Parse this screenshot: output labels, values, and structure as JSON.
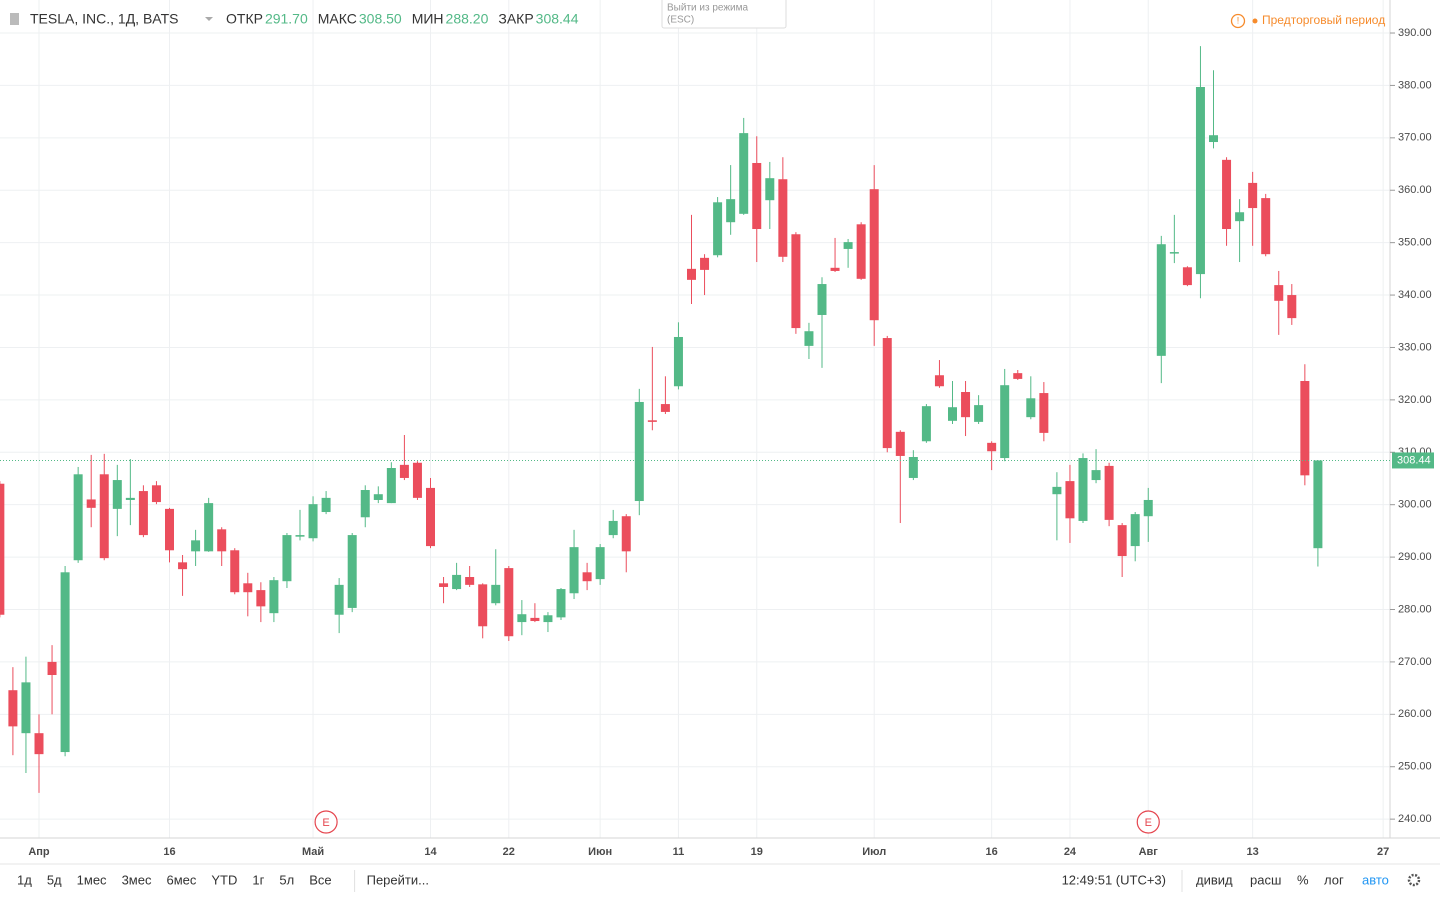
{
  "chart_data": {
    "type": "candlestick",
    "title": "TESLA, INC., 1Д, BATS",
    "ohlc_legend": [
      {
        "name": "ОТКР",
        "value": "291.70"
      },
      {
        "name": "МАКС",
        "value": "308.50"
      },
      {
        "name": "МИН",
        "value": "288.20"
      },
      {
        "name": "ЗАКР",
        "value": "308.44"
      }
    ],
    "tooltip": [
      "Выйти из режима",
      "(ESC)"
    ],
    "session_note": "Предторговый период",
    "up_color": "#53b987",
    "down_color": "#eb4d5c",
    "categories": [
      null,
      null,
      null,
      "Апр",
      null,
      null,
      null,
      null,
      null,
      null,
      null,
      null,
      null,
      "16",
      null,
      null,
      null,
      null,
      null,
      null,
      null,
      null,
      null,
      null,
      "Май",
      null,
      null,
      null,
      null,
      null,
      null,
      null,
      null,
      "14",
      null,
      null,
      null,
      null,
      null,
      "22",
      null,
      null,
      null,
      null,
      null,
      null,
      "Июн",
      null,
      null,
      null,
      null,
      null,
      "11",
      null,
      null,
      null,
      null,
      null,
      "19",
      null,
      null,
      null,
      null,
      null,
      null,
      null,
      null,
      "Июл",
      null,
      null,
      null,
      null,
      null,
      null,
      null,
      null,
      "16",
      null,
      null,
      null,
      null,
      null,
      "24",
      null,
      null,
      null,
      null,
      null,
      "Авг",
      null,
      null,
      null,
      null,
      null,
      null,
      null,
      "13",
      null,
      null,
      null,
      null,
      null,
      null,
      null,
      null,
      null,
      "27"
    ],
    "open": [
      304,
      264.6,
      256.4,
      256.4,
      270,
      252.8,
      289.4,
      301,
      305.8,
      299.2,
      300.9,
      302.6,
      303.7,
      299.2,
      289,
      291.1,
      291.1,
      295.3,
      291.3,
      285,
      283.7,
      279.3,
      285.4,
      293.9,
      293.6,
      298.6,
      279,
      280.3,
      297.6,
      300.9,
      300.3,
      307.6,
      308,
      303.2,
      285,
      283.9,
      286.2,
      284.8,
      281.2,
      287.9,
      277.6,
      278.4,
      277.6,
      278.5,
      283.1,
      287.1,
      285.8,
      294.2,
      297.8,
      300.7,
      316.1,
      319.2,
      322.6,
      345,
      347.1,
      347.6,
      353.9,
      355.5,
      365.2,
      358.1,
      362.1,
      351.6,
      330.3,
      336.2,
      345.2,
      348.8,
      353.5,
      360.2,
      331.8,
      313.9,
      305.1,
      312.1,
      324.7,
      316,
      321.5,
      315.8,
      311.8,
      308.9,
      325.1,
      316.7,
      321.3,
      302,
      304.5,
      296.9,
      304.7,
      307.4,
      296.1,
      292.1,
      297.8,
      328.4,
      348,
      345.3,
      344,
      369.2,
      365.8,
      354.1,
      361.4,
      358.5,
      341.9,
      340,
      323.6,
      291.7,
      null,
      null,
      null,
      null,
      null
    ],
    "high": [
      304.5,
      269,
      271,
      260,
      273.2,
      288.3,
      307.2,
      309.5,
      309.7,
      307.6,
      308.7,
      303.7,
      304.5,
      299.4,
      290.4,
      295.2,
      301.3,
      295.7,
      291.7,
      287,
      285.2,
      286.2,
      294.6,
      299,
      301.6,
      302.6,
      286,
      294.6,
      303.7,
      303.5,
      308.1,
      313.3,
      308.3,
      305.1,
      286.2,
      288.9,
      288.3,
      285,
      291.5,
      288.3,
      281.8,
      281.2,
      279.5,
      284.1,
      295.2,
      288.9,
      292.5,
      299,
      298.2,
      322.1,
      330.1,
      324.5,
      334.8,
      355.3,
      347.8,
      358.7,
      364.8,
      373.8,
      370.3,
      365.4,
      366.3,
      352,
      334.7,
      343.4,
      350.9,
      350.7,
      353.9,
      364.8,
      332.2,
      314.2,
      310.4,
      319.2,
      327.6,
      323.6,
      323.6,
      320.9,
      312.1,
      325.9,
      325.7,
      324.5,
      323.4,
      306.2,
      307.6,
      309.8,
      310.6,
      308,
      296.5,
      298.6,
      303.2,
      351.3,
      355.3,
      345.5,
      387.5,
      382.9,
      366.3,
      358.3,
      363.5,
      359.3,
      344.6,
      342.1,
      326.8,
      308.5,
      null,
      null,
      null,
      null,
      null
    ],
    "low": [
      278.5,
      252.2,
      248.8,
      245,
      260,
      252,
      288.9,
      295.7,
      289.4,
      294,
      296.1,
      293.8,
      300.1,
      289,
      282.6,
      288.3,
      291,
      288.3,
      282.9,
      278.7,
      277.6,
      277.6,
      284.1,
      293.2,
      293,
      298.2,
      275.5,
      279.5,
      295.7,
      300.3,
      300.3,
      304.7,
      300.9,
      291.7,
      281.2,
      283.7,
      284.3,
      274.5,
      280.8,
      274,
      275.1,
      277.6,
      275.7,
      278,
      282,
      283.7,
      284.7,
      293.6,
      287.1,
      298,
      314.2,
      317.3,
      322,
      338.3,
      340,
      347.2,
      351.5,
      355.3,
      346.3,
      352.6,
      346.3,
      332.6,
      327.8,
      326.1,
      344.4,
      345.2,
      342.9,
      330.3,
      310,
      296.5,
      304.7,
      311.8,
      322.3,
      315.4,
      313.1,
      315.4,
      306.6,
      308.3,
      323.8,
      316.3,
      312.1,
      293.2,
      292.7,
      296.5,
      304.1,
      295.9,
      286.2,
      289.2,
      292.9,
      323.2,
      346.1,
      341.7,
      339.4,
      368,
      349.4,
      346.3,
      349.4,
      347.4,
      332.4,
      334.3,
      303.7,
      288.2,
      null,
      null,
      null,
      null,
      null
    ],
    "close": [
      279,
      257.7,
      266.1,
      252.4,
      267.5,
      287.1,
      305.8,
      299.4,
      289.8,
      304.7,
      301.3,
      294.2,
      300.5,
      291.3,
      287.7,
      293.2,
      300.3,
      291.1,
      283.3,
      283.3,
      280.6,
      285.6,
      294.2,
      294.2,
      300.1,
      301.3,
      284.7,
      294.2,
      302.8,
      302,
      307,
      305.1,
      301.3,
      292.1,
      284.3,
      286.6,
      284.7,
      276.8,
      284.7,
      274.9,
      279.1,
      277.8,
      278.9,
      283.9,
      291.9,
      285.4,
      291.9,
      296.9,
      291.1,
      319.6,
      315.8,
      317.7,
      332,
      342.9,
      344.8,
      357.7,
      358.3,
      370.9,
      352.6,
      362.3,
      347.3,
      333.7,
      333.1,
      342.1,
      344.6,
      350.1,
      343.1,
      335.2,
      310.8,
      309.3,
      309.1,
      318.8,
      322.6,
      318.6,
      316.7,
      319,
      310.2,
      322.8,
      324,
      320.3,
      313.7,
      303.4,
      297.4,
      308.9,
      306.6,
      297.1,
      290.2,
      298.2,
      300.9,
      349.7,
      348.2,
      341.9,
      379.7,
      370.5,
      352.6,
      355.8,
      356.6,
      347.8,
      338.9,
      335.6,
      305.6,
      308.44,
      null,
      null,
      null,
      null,
      null
    ],
    "events": [
      {
        "at": 25,
        "label": "E"
      },
      {
        "at": 88,
        "label": "E"
      }
    ],
    "ylim": [
      236.4,
      396.3
    ],
    "yticks": [
      {
        "value": 240,
        "label": "240.00"
      },
      {
        "value": 250,
        "label": "250.00"
      },
      {
        "value": 260,
        "label": "260.00"
      },
      {
        "value": 270,
        "label": "270.00"
      },
      {
        "value": 280,
        "label": "280.00"
      },
      {
        "value": 290,
        "label": "290.00"
      },
      {
        "value": 300,
        "label": "300.00"
      },
      {
        "value": 310,
        "label": "310.00"
      },
      {
        "value": 320,
        "label": "320.00"
      },
      {
        "value": 330,
        "label": "330.00"
      },
      {
        "value": 340,
        "label": "340.00"
      },
      {
        "value": 350,
        "label": "350.00"
      },
      {
        "value": 360,
        "label": "360.00"
      },
      {
        "value": 370,
        "label": "370.00"
      },
      {
        "value": 380,
        "label": "380.00"
      },
      {
        "value": 390,
        "label": "390.00"
      }
    ],
    "grid": true,
    "toolbar_left": [
      "1д",
      "5д",
      "1мес",
      "3мес",
      "6мес",
      "YTD",
      "1г",
      "5л",
      "Все",
      "Перейти..."
    ],
    "clock": "12:49:51 (UTC+3)",
    "toolbar_right": [
      "дивид",
      "расш",
      "%",
      "лог",
      "авто"
    ]
  }
}
